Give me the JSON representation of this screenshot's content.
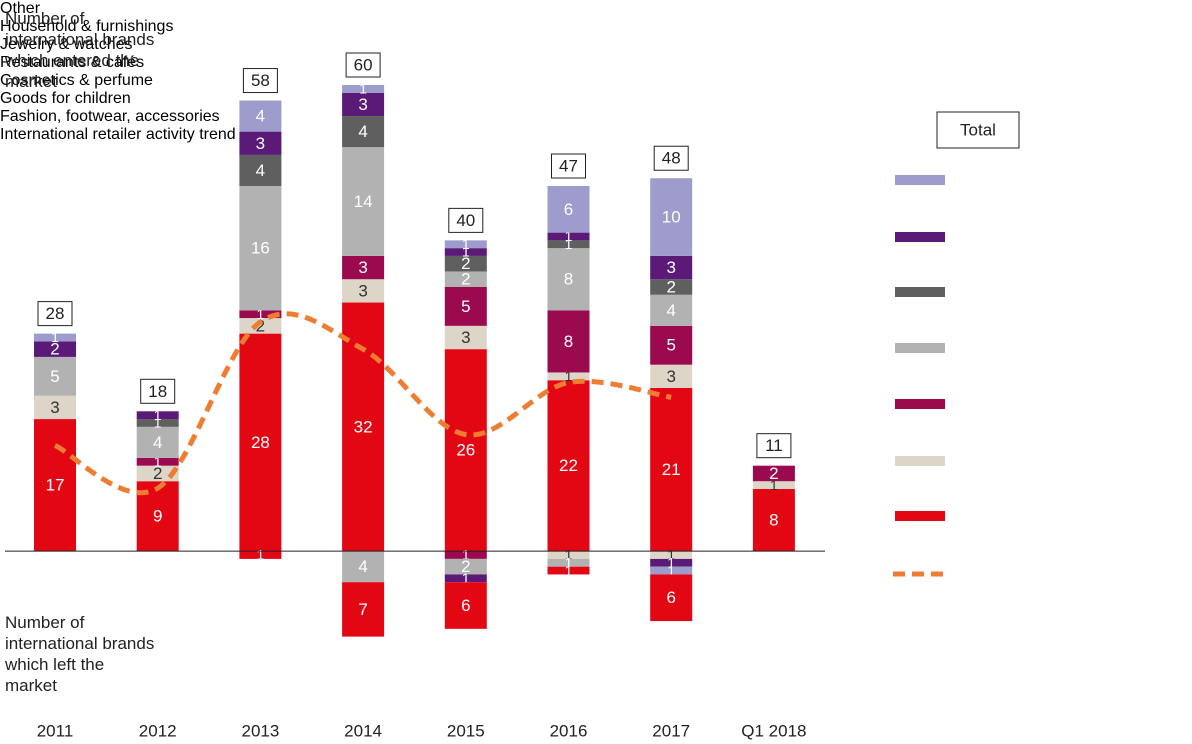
{
  "chart_data": {
    "type": "bar",
    "entered_label": "Number of international brands which entered the market",
    "left_label": "Number of international brands which left the market",
    "totals_legend": "Total",
    "categories": [
      "2011",
      "2012",
      "2013",
      "2014",
      "2015",
      "2016",
      "2017",
      "Q1 2018"
    ],
    "totals": [
      28,
      18,
      58,
      60,
      40,
      47,
      48,
      11
    ],
    "ylim": [
      -11,
      60
    ],
    "series": [
      {
        "name": "Fashion, footwear, accessories",
        "color": "#e30613",
        "values": [
          17,
          9,
          28,
          32,
          26,
          22,
          21,
          8
        ],
        "left": [
          0,
          0,
          1,
          7,
          6,
          1,
          6,
          0
        ]
      },
      {
        "name": "Goods for children",
        "color": "#ddd5c8",
        "values": [
          3,
          2,
          2,
          3,
          3,
          1,
          3,
          1
        ],
        "left": [
          0,
          0,
          0,
          0,
          0,
          1,
          1,
          0
        ]
      },
      {
        "name": "Cosmetics & perfume",
        "color": "#9b0a4f",
        "values": [
          0,
          1,
          1,
          3,
          5,
          8,
          5,
          2
        ],
        "left": [
          0,
          0,
          0,
          0,
          1,
          0,
          0,
          0
        ]
      },
      {
        "name": "Restaurants & cafés",
        "color": "#b2b2b2",
        "values": [
          5,
          4,
          16,
          14,
          2,
          8,
          4,
          0
        ],
        "left": [
          0,
          0,
          0,
          4,
          2,
          1,
          0,
          0
        ]
      },
      {
        "name": "Jewelry & watches",
        "color": "#5f5f5f",
        "values": [
          0,
          1,
          4,
          4,
          2,
          1,
          2,
          0
        ],
        "left": [
          0,
          0,
          0,
          0,
          0,
          0,
          0,
          0
        ]
      },
      {
        "name": "Household & furnishings",
        "color": "#5c1a78",
        "values": [
          2,
          1,
          3,
          3,
          1,
          1,
          3,
          0
        ],
        "left": [
          0,
          0,
          0,
          0,
          1,
          0,
          1,
          0
        ]
      },
      {
        "name": "Other",
        "color": "#9d9ccc",
        "values": [
          1,
          0,
          4,
          1,
          1,
          6,
          10,
          0
        ],
        "left": [
          0,
          0,
          0,
          0,
          0,
          0,
          1,
          0
        ]
      }
    ],
    "trend": {
      "name": "International retailer activity trend",
      "color": "#ee7d31",
      "values": [
        13.6,
        8.1,
        29.5,
        26,
        15,
        21.7,
        19.8,
        null
      ]
    }
  }
}
